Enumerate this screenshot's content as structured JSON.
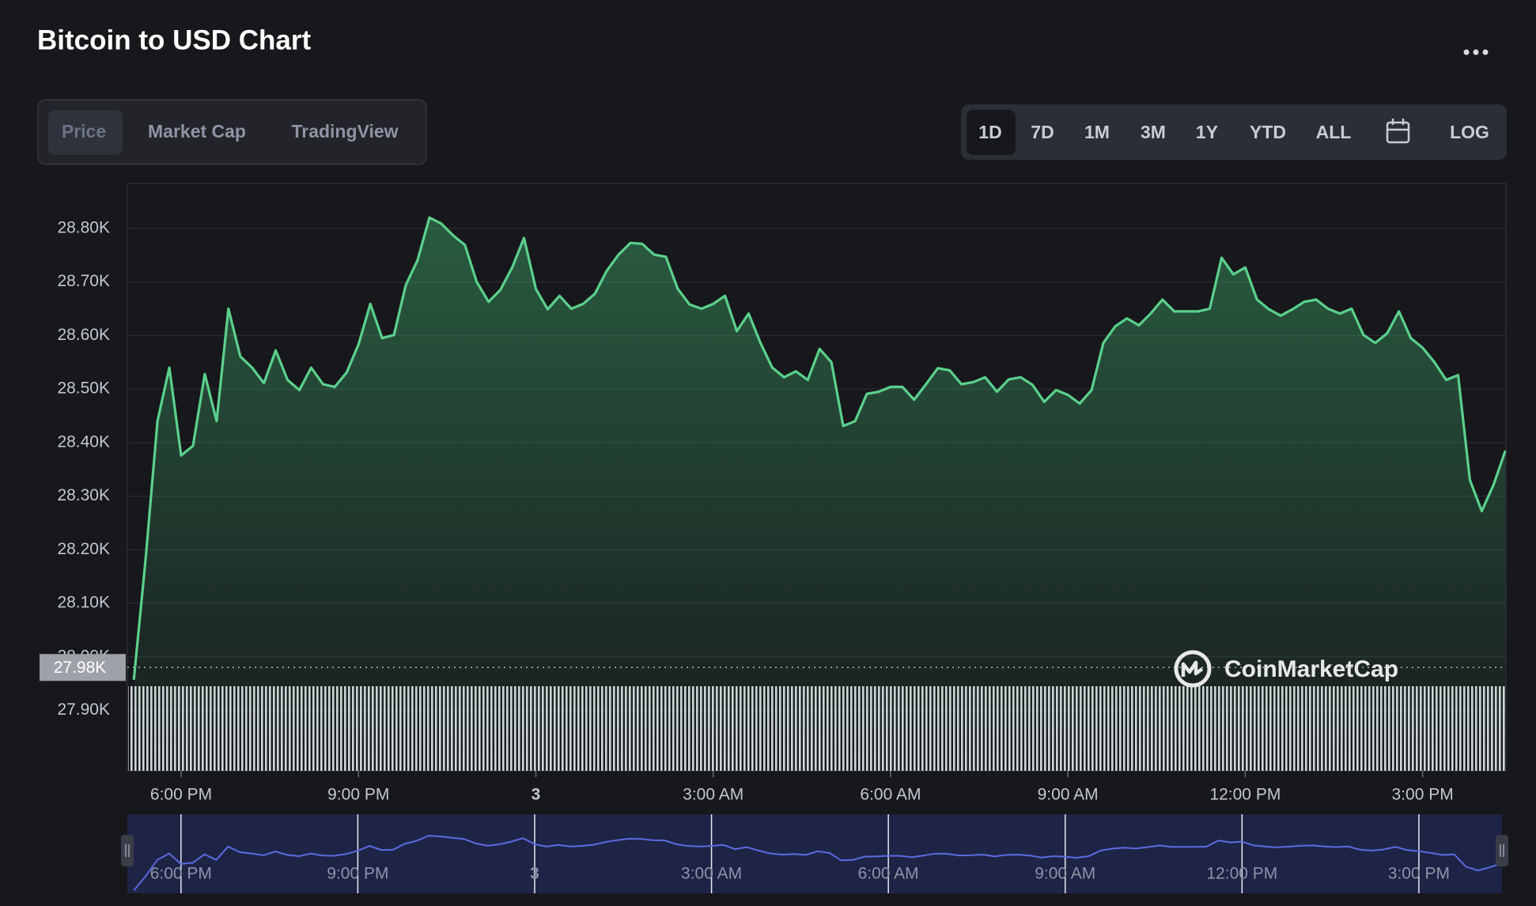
{
  "chart_data": {
    "type": "line",
    "title": "Bitcoin to USD Chart",
    "color": "#5bd08c",
    "log": false,
    "grid": true,
    "x": [
      17.2,
      17.4,
      17.6,
      17.8,
      18.0,
      18.2,
      18.4,
      18.6,
      18.8,
      19.0,
      19.2,
      19.4,
      19.6,
      19.8,
      20.0,
      20.2,
      20.4,
      20.6,
      20.8,
      21.0,
      21.2,
      21.4,
      21.6,
      21.8,
      22.0,
      22.2,
      22.4,
      22.6,
      22.8,
      23.0,
      23.2,
      23.4,
      23.6,
      23.8,
      24.0,
      24.2,
      24.4,
      24.6,
      24.8,
      25.0,
      25.2,
      25.4,
      25.6,
      25.8,
      26.0,
      26.2,
      26.4,
      26.6,
      26.8,
      27.0,
      27.2,
      27.4,
      27.6,
      27.8,
      28.0,
      28.2,
      28.4,
      28.6,
      28.8,
      29.0,
      29.2,
      29.4,
      29.6,
      29.8,
      30.0,
      30.2,
      30.4,
      30.6,
      30.8,
      31.0,
      31.2,
      31.4,
      31.6,
      31.8,
      32.0,
      32.2,
      32.4,
      32.6,
      32.8,
      33.0,
      33.2,
      33.4,
      33.6,
      33.8,
      34.0,
      34.2,
      34.4,
      34.6,
      34.8,
      35.0,
      35.2,
      35.4,
      35.6,
      35.8,
      36.0,
      36.2,
      36.4,
      36.6,
      36.8,
      37.0,
      37.2,
      37.4,
      37.6,
      37.8,
      38.0,
      38.2,
      38.4,
      38.6,
      38.8,
      39.0,
      39.2,
      39.4,
      39.6,
      39.8,
      40.0,
      40.2,
      40.4
    ],
    "values": [
      27957,
      28184,
      28440,
      28540,
      28376,
      28394,
      28528,
      28440,
      28650,
      28561,
      28540,
      28511,
      28572,
      28517,
      28498,
      28540,
      28509,
      28504,
      28531,
      28583,
      28659,
      28595,
      28601,
      28694,
      28741,
      28820,
      28809,
      28787,
      28769,
      28700,
      28663,
      28685,
      28727,
      28782,
      28687,
      28649,
      28674,
      28650,
      28659,
      28678,
      28721,
      28751,
      28773,
      28771,
      28751,
      28747,
      28687,
      28658,
      28650,
      28659,
      28674,
      28608,
      28641,
      28586,
      28540,
      28522,
      28533,
      28517,
      28575,
      28550,
      28431,
      28440,
      28491,
      28495,
      28504,
      28504,
      28480,
      28509,
      28539,
      28535,
      28509,
      28513,
      28522,
      28495,
      28518,
      28522,
      28508,
      28476,
      28498,
      28489,
      28473,
      28498,
      28586,
      28617,
      28632,
      28619,
      28641,
      28667,
      28645,
      28645,
      28645,
      28650,
      28745,
      28714,
      28727,
      28667,
      28649,
      28637,
      28649,
      28663,
      28667,
      28650,
      28641,
      28650,
      28601,
      28586,
      28604,
      28645,
      28595,
      28577,
      28550,
      28517,
      28526,
      28330,
      28272,
      28321,
      28385
    ],
    "xlim": [
      17.09,
      40.41
    ],
    "xticks": [
      {
        "value": 18,
        "label": "6:00 PM"
      },
      {
        "value": 21,
        "label": "9:00 PM"
      },
      {
        "value": 24,
        "label": "3"
      },
      {
        "value": 27,
        "label": "3:00 AM"
      },
      {
        "value": 30,
        "label": "6:00 AM"
      },
      {
        "value": 33,
        "label": "9:00 AM"
      },
      {
        "value": 36,
        "label": "12:00 PM"
      },
      {
        "value": 39,
        "label": "3:00 PM"
      }
    ],
    "ylim": [
      27787,
      28884
    ],
    "yticks": [
      {
        "value": 27900,
        "label": "27.90K"
      },
      {
        "value": 28000,
        "label": "28.00K"
      },
      {
        "value": 28100,
        "label": "28.10K"
      },
      {
        "value": 28200,
        "label": "28.20K"
      },
      {
        "value": 28300,
        "label": "28.30K"
      },
      {
        "value": 28400,
        "label": "28.40K"
      },
      {
        "value": 28500,
        "label": "28.50K"
      },
      {
        "value": 28600,
        "label": "28.60K"
      },
      {
        "value": 28700,
        "label": "28.70K"
      },
      {
        "value": 28800,
        "label": "28.80K"
      }
    ],
    "current": {
      "value": 27980,
      "label": "27.98K"
    }
  },
  "tabs": [
    "Price",
    "Market Cap",
    "TradingView"
  ],
  "ranges": [
    "1D",
    "7D",
    "1M",
    "3M",
    "1Y",
    "YTD",
    "ALL"
  ],
  "log_button": "LOG",
  "watermark": "CoinMarketCap"
}
